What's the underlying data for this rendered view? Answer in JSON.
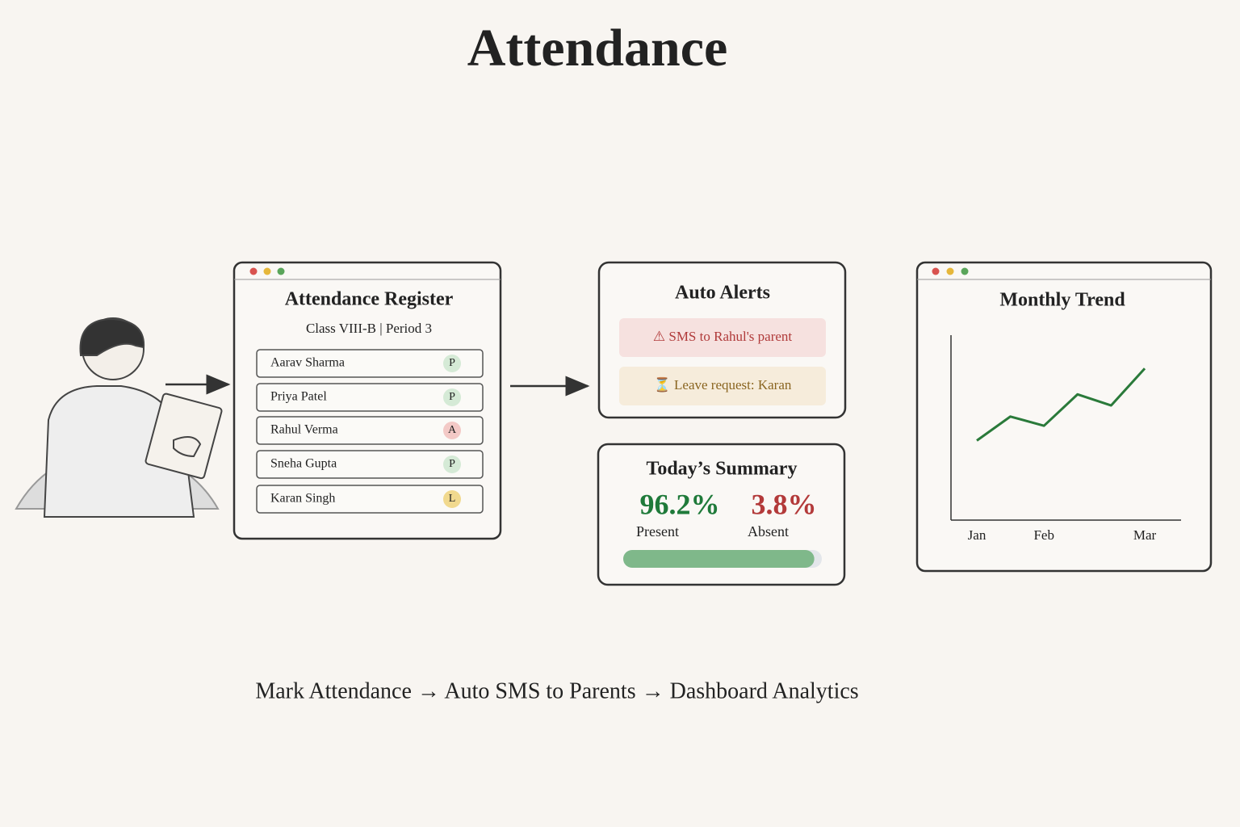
{
  "header": {
    "title": "Attendance"
  },
  "register": {
    "title": "Attendance Register",
    "subtitle": "Class VIII-B | Period 3",
    "students": [
      {
        "name": "Aarav Sharma",
        "status": "P",
        "color": "#d5ead6"
      },
      {
        "name": "Priya Patel",
        "status": "P",
        "color": "#d5ead6"
      },
      {
        "name": "Rahul Verma",
        "status": "A",
        "color": "#f3c9c6"
      },
      {
        "name": "Sneha Gupta",
        "status": "P",
        "color": "#d5ead6"
      },
      {
        "name": "Karan Singh",
        "status": "L",
        "color": "#f1d98e"
      }
    ]
  },
  "alerts": {
    "title": "Auto Alerts",
    "items": [
      {
        "text": "⚠ SMS to Rahul's parent",
        "color": "#b03a3a",
        "background": "#f6e1df"
      },
      {
        "text": "⏳ Leave request: Karan",
        "color": "#8a6520",
        "background": "#f6ecdb"
      }
    ]
  },
  "summary": {
    "title": "Today’s Summary",
    "present": {
      "value": 96.2,
      "value_label": "96.2%",
      "label": "Present",
      "color": "#1f7a3a"
    },
    "absent": {
      "value": 3.8,
      "value_label": "3.8%",
      "label": "Absent",
      "color": "#b33a3a"
    }
  },
  "chart_data": {
    "type": "line",
    "title": "Monthly Trend",
    "categories": [
      "Jan",
      null,
      "Feb",
      null,
      null,
      "Mar"
    ],
    "values": [
      43,
      56,
      51,
      68,
      62,
      82
    ],
    "color": "#2a7a3a",
    "ylim": [
      0,
      100
    ]
  },
  "footer": {
    "caption": "Mark Attendance → Auto SMS to Parents → Dashboard Analytics"
  }
}
